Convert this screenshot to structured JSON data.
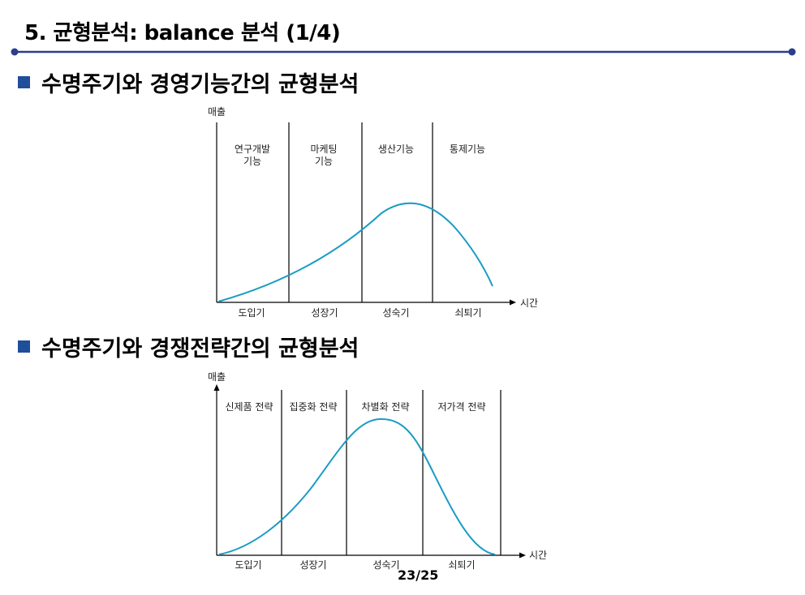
{
  "slide": {
    "title": "5. 균형분석: balance 분석 (1/4)",
    "section1": "수명주기와 경영기능간의 균형분석",
    "section2": "수명주기와 경쟁전략간의 균형분석",
    "page": "23/25",
    "accent_color": "#1f4e9a",
    "curve_color": "#1a9bc4"
  },
  "diagram1": {
    "y_label": "매출",
    "x_label": "시간",
    "stages": [
      "도입기",
      "성장기",
      "성숙기",
      "쇠퇴기"
    ],
    "region_labels": [
      [
        "연구개발",
        "기능"
      ],
      [
        "마케팅",
        "기능"
      ],
      [
        "생산기능"
      ],
      [
        "통제기능"
      ]
    ]
  },
  "diagram2": {
    "y_label": "매출",
    "x_label": "시간",
    "stages": [
      "도입기",
      "성장기",
      "성숙기",
      "쇠퇴기"
    ],
    "region_labels": [
      "신제품 전략",
      "집중화 전략",
      "차별화 전략",
      "저가격 전략"
    ]
  }
}
